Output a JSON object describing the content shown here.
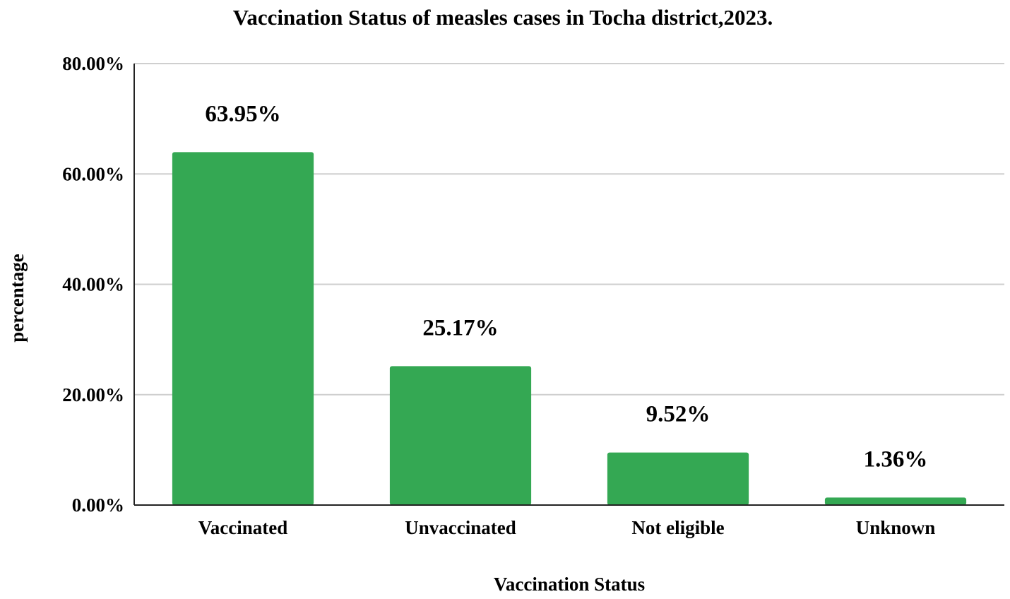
{
  "chart_data": {
    "type": "bar",
    "title": "Vaccination Status of measles cases in Tocha district,2023.",
    "xlabel": "Vaccination Status",
    "ylabel": "percentage",
    "categories": [
      "Vaccinated",
      "Unvaccinated",
      "Not eligible",
      "Unknown"
    ],
    "values": [
      63.95,
      25.17,
      9.52,
      1.36
    ],
    "data_labels": [
      "63.95%",
      "25.17%",
      "9.52%",
      "1.36%"
    ],
    "ylim": [
      0,
      80
    ],
    "yticks": [
      0,
      20,
      40,
      60,
      80
    ],
    "ytick_labels": [
      "0.00%",
      "20.00%",
      "40.00%",
      "60.00%",
      "80.00%"
    ],
    "grid": true,
    "legend": "none",
    "bar_color": "#34a853"
  }
}
